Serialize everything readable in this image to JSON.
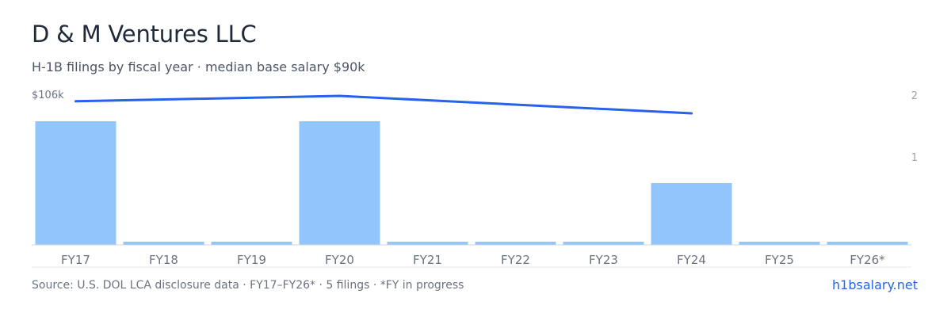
{
  "header": {
    "title": "D & M Ventures LLC",
    "subtitle": "H-1B filings by fiscal year · median base salary $90k"
  },
  "footer": {
    "source": "Source: U.S. DOL LCA disclosure data · FY17–FY26* · 5 filings · *FY in progress",
    "link": "h1bsalary.net"
  },
  "colors": {
    "bar": "#93c5fd",
    "line": "#2563eb",
    "axis_text": "#6b7280",
    "right_axis_text": "#9ca3af",
    "baseline": "#d1d5db",
    "link": "#2563eb"
  },
  "chart_data": {
    "type": "bar",
    "categories": [
      "FY17",
      "FY18",
      "FY19",
      "FY20",
      "FY21",
      "FY22",
      "FY23",
      "FY24",
      "FY25",
      "FY26*"
    ],
    "series": [
      {
        "type": "bar",
        "axis": "right",
        "values": [
          2,
          0,
          0,
          2,
          0,
          0,
          0,
          1,
          0,
          0
        ]
      },
      {
        "type": "line",
        "axis": "left",
        "values": [
          102,
          null,
          null,
          106,
          null,
          null,
          null,
          93,
          null,
          null
        ]
      }
    ],
    "left_axis": {
      "ticks": [
        {
          "value": 106,
          "label": "$106k"
        }
      ]
    },
    "right_axis": {
      "ticks": [
        "2",
        "1"
      ],
      "range": [
        0,
        2
      ]
    },
    "zero_bar_marker": true,
    "grid": false,
    "legend": "none"
  }
}
